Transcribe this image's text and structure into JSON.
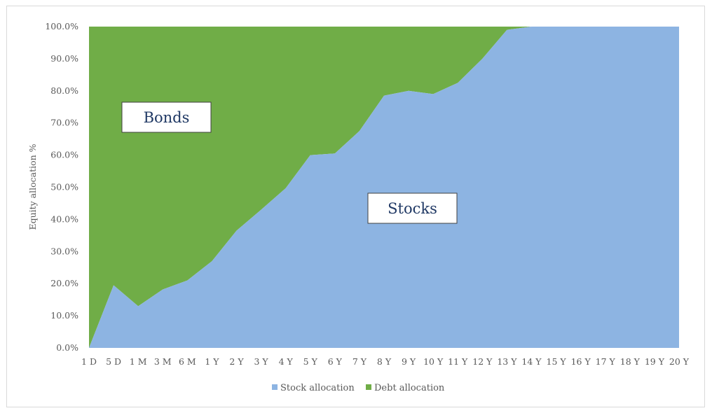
{
  "chart_data": {
    "type": "area",
    "stacked": true,
    "title": "",
    "xlabel": "",
    "ylabel": "Equity allocation %",
    "ylim": [
      0,
      100
    ],
    "y_ticks": [
      "0.0%",
      "10.0%",
      "20.0%",
      "30.0%",
      "40.0%",
      "50.0%",
      "60.0%",
      "70.0%",
      "80.0%",
      "90.0%",
      "100.0%"
    ],
    "categories": [
      "1 D",
      "5 D",
      "1 M",
      "3 M",
      "6 M",
      "1 Y",
      "2 Y",
      "3 Y",
      "4 Y",
      "5 Y",
      "6 Y",
      "7 Y",
      "8 Y",
      "9 Y",
      "10 Y",
      "11 Y",
      "12 Y",
      "13 Y",
      "14 Y",
      "15 Y",
      "16 Y",
      "17 Y",
      "18 Y",
      "19 Y",
      "20 Y"
    ],
    "series": [
      {
        "name": "Stock allocation",
        "color": "#8db4e2",
        "values": [
          0,
          19.5,
          13,
          18.2,
          21,
          27,
          36.5,
          43,
          49.7,
          60,
          60.5,
          67.5,
          78.5,
          80,
          79,
          82.5,
          90,
          99,
          100,
          100,
          100,
          100,
          100,
          100,
          100
        ]
      },
      {
        "name": "Debt allocation",
        "color": "#70ad47",
        "values": [
          100,
          80.5,
          87,
          81.8,
          79,
          73,
          63.5,
          57,
          50.3,
          40,
          39.5,
          32.5,
          21.5,
          20,
          21,
          17.5,
          10,
          1,
          0,
          0,
          0,
          0,
          0,
          0,
          0
        ]
      }
    ],
    "legend": {
      "position": "bottom",
      "entries": [
        "Stock allocation",
        "Debt allocation"
      ]
    },
    "annotations": [
      {
        "text": "Bonds",
        "at_category": "2 Y",
        "at_value": 71.5
      },
      {
        "text": "Stocks",
        "at_category": "10 Y",
        "at_value": 43
      }
    ]
  }
}
